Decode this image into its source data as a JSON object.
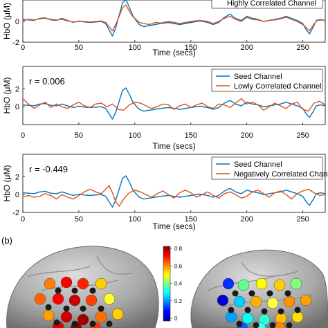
{
  "panel_b_label": "(b)",
  "colorbar_ticks": [
    "0.8",
    "0.6",
    "0.4",
    "0.2",
    "0"
  ],
  "colorbar_colors": [
    "#00008f",
    "#0000ff",
    "#0080ff",
    "#00ffff",
    "#80ff80",
    "#ffff00",
    "#ff8000",
    "#ff0000",
    "#800000"
  ],
  "colors": {
    "seed": "#0072bd",
    "other": "#d95319"
  },
  "chart_data": [
    {
      "type": "line",
      "r_label": "",
      "legend": [
        "Highly Correlated Channel"
      ],
      "xlabel": "Time (secs)",
      "ylabel": "HbO (μM)",
      "x_ticks": [
        0,
        50,
        100,
        150,
        200,
        250
      ],
      "y_ticks": [
        0,
        -2
      ],
      "xlim": [
        0,
        270
      ],
      "ylim": [
        -2,
        2.2
      ],
      "series": [
        {
          "name": "",
          "x": [
            0,
            5,
            10,
            15,
            20,
            25,
            30,
            35,
            40,
            45,
            50,
            55,
            60,
            65,
            70,
            74,
            77,
            80,
            83,
            86,
            89,
            92,
            95,
            98,
            101,
            104,
            108,
            113,
            118,
            123,
            130,
            140,
            150,
            158,
            165,
            170,
            175,
            180,
            185,
            190,
            195,
            200,
            205,
            210,
            215,
            220,
            225,
            230,
            235,
            240,
            245,
            250,
            253,
            256,
            259,
            262,
            266,
            270
          ],
          "values": [
            0.2,
            0.15,
            0.1,
            0.3,
            0.35,
            0.15,
            0.1,
            0.3,
            0.1,
            -0.1,
            0.05,
            -0.05,
            -0.1,
            -0.05,
            0.0,
            -0.2,
            -0.8,
            -1.4,
            -0.6,
            0.6,
            1.8,
            2.1,
            1.4,
            0.6,
            0.1,
            -0.3,
            -0.5,
            -0.4,
            -0.3,
            -0.2,
            -0.1,
            -0.3,
            -0.1,
            0.05,
            -0.1,
            -0.3,
            -0.1,
            0.4,
            0.7,
            0.3,
            0.1,
            0.5,
            0.3,
            0.2,
            0.0,
            0.1,
            0.2,
            0.3,
            0.5,
            0.3,
            0.1,
            -0.2,
            -0.8,
            -1.2,
            -0.6,
            0.1,
            0.2,
            0.1
          ]
        },
        {
          "name": "",
          "x": [
            0,
            5,
            10,
            15,
            20,
            25,
            30,
            35,
            40,
            45,
            50,
            55,
            60,
            65,
            70,
            74,
            77,
            80,
            83,
            86,
            89,
            92,
            95,
            98,
            101,
            104,
            108,
            113,
            118,
            123,
            130,
            140,
            150,
            158,
            165,
            170,
            175,
            180,
            185,
            190,
            195,
            200,
            205,
            210,
            215,
            220,
            225,
            230,
            235,
            240,
            245,
            250,
            253,
            256,
            259,
            262,
            266,
            270
          ],
          "values": [
            0.1,
            0.2,
            0.15,
            0.25,
            0.3,
            0.2,
            0.15,
            0.2,
            0.05,
            -0.05,
            0.0,
            0.0,
            -0.05,
            0.0,
            0.05,
            -0.1,
            -0.5,
            -0.9,
            -0.3,
            0.5,
            1.3,
            1.6,
            1.0,
            0.5,
            0.2,
            -0.1,
            -0.2,
            -0.3,
            -0.1,
            -0.15,
            0.0,
            -0.2,
            0.0,
            0.1,
            0.0,
            -0.2,
            0.0,
            0.3,
            0.5,
            0.2,
            0.0,
            0.4,
            0.2,
            0.15,
            0.0,
            0.1,
            0.15,
            0.25,
            0.4,
            0.2,
            0.0,
            -0.3,
            -0.6,
            -0.9,
            -0.4,
            0.05,
            0.15,
            0.1
          ]
        }
      ]
    },
    {
      "type": "line",
      "r_label": "r = 0.006",
      "legend": [
        "Seed Channel",
        "Lowly Correlated Channel"
      ],
      "xlabel": "Time (secs)",
      "ylabel": "HbO (μM)",
      "x_ticks": [
        0,
        50,
        100,
        150,
        200,
        250
      ],
      "y_ticks": [
        2,
        0
      ],
      "xlim": [
        0,
        270
      ],
      "ylim": [
        -2,
        4.5
      ],
      "series": [
        {
          "name": "Seed Channel",
          "x": [
            0,
            5,
            10,
            15,
            20,
            25,
            30,
            35,
            40,
            45,
            50,
            55,
            60,
            65,
            70,
            74,
            77,
            80,
            83,
            86,
            89,
            92,
            95,
            98,
            101,
            104,
            108,
            113,
            118,
            123,
            130,
            140,
            150,
            158,
            165,
            170,
            175,
            180,
            185,
            190,
            195,
            200,
            205,
            210,
            215,
            220,
            225,
            230,
            235,
            240,
            245,
            250,
            253,
            256,
            259,
            262,
            266,
            270
          ],
          "values": [
            0.2,
            0.15,
            0.1,
            0.3,
            0.35,
            0.15,
            0.1,
            0.3,
            0.1,
            -0.1,
            0.05,
            -0.05,
            -0.1,
            -0.05,
            0.0,
            -0.2,
            -0.8,
            -1.4,
            -0.6,
            0.6,
            1.8,
            2.1,
            1.4,
            0.6,
            0.1,
            -0.3,
            -0.5,
            -0.4,
            -0.3,
            -0.2,
            -0.1,
            -0.3,
            -0.1,
            0.05,
            -0.1,
            -0.3,
            -0.1,
            0.4,
            0.7,
            0.3,
            0.1,
            0.5,
            0.3,
            0.2,
            0.0,
            0.1,
            0.2,
            0.3,
            0.5,
            0.3,
            0.1,
            -0.2,
            -0.8,
            -1.2,
            -0.6,
            0.1,
            0.2,
            0.1
          ]
        },
        {
          "name": "Lowly Correlated Channel",
          "x": [
            0,
            5,
            10,
            15,
            20,
            25,
            30,
            35,
            40,
            45,
            50,
            55,
            60,
            65,
            70,
            75,
            80,
            85,
            90,
            95,
            100,
            105,
            110,
            115,
            120,
            125,
            130,
            135,
            140,
            145,
            150,
            155,
            160,
            165,
            170,
            175,
            180,
            185,
            190,
            195,
            200,
            205,
            210,
            215,
            220,
            225,
            230,
            235,
            240,
            245,
            250,
            255,
            260,
            265,
            270
          ],
          "values": [
            0.9,
            0.3,
            -0.2,
            0.2,
            0.5,
            -0.1,
            0.3,
            0.0,
            -0.2,
            0.2,
            0.5,
            0.1,
            -0.1,
            0.3,
            0.4,
            0.0,
            0.3,
            -0.3,
            -0.4,
            0.2,
            0.5,
            0.4,
            0.1,
            -0.2,
            0.0,
            0.3,
            0.2,
            -0.3,
            0.1,
            0.3,
            -0.1,
            0.2,
            0.4,
            0.0,
            -0.2,
            0.3,
            0.2,
            -0.1,
            0.4,
            0.9,
            0.3,
            0.5,
            0.2,
            -0.4,
            0.0,
            0.4,
            0.1,
            -0.2,
            0.3,
            0.5,
            -0.3,
            -0.5,
            0.4,
            0.6,
            0.2
          ]
        }
      ]
    },
    {
      "type": "line",
      "r_label": "r = -0.449",
      "legend": [
        "Seed Channel",
        "Negatively Correlated Channel"
      ],
      "xlabel": "Time (secs)",
      "ylabel": "HbO (μM)",
      "x_ticks": [
        0,
        50,
        100,
        150,
        200,
        250
      ],
      "y_ticks": [
        2,
        0,
        -2
      ],
      "xlim": [
        0,
        270
      ],
      "ylim": [
        -2,
        4.5
      ],
      "series": [
        {
          "name": "Seed Channel",
          "x": [
            0,
            5,
            10,
            15,
            20,
            25,
            30,
            35,
            40,
            45,
            50,
            55,
            60,
            65,
            70,
            74,
            77,
            80,
            83,
            86,
            89,
            92,
            95,
            98,
            101,
            104,
            108,
            113,
            118,
            123,
            130,
            140,
            150,
            158,
            165,
            170,
            175,
            180,
            185,
            190,
            195,
            200,
            205,
            210,
            215,
            220,
            225,
            230,
            235,
            240,
            245,
            250,
            253,
            256,
            259,
            262,
            266,
            270
          ],
          "values": [
            0.2,
            0.15,
            0.1,
            0.3,
            0.35,
            0.15,
            0.1,
            0.3,
            0.1,
            -0.1,
            0.05,
            -0.05,
            -0.1,
            -0.05,
            0.0,
            -0.2,
            -0.8,
            -1.4,
            -0.6,
            0.6,
            1.8,
            2.1,
            1.4,
            0.6,
            0.1,
            -0.3,
            -0.5,
            -0.4,
            -0.3,
            -0.2,
            -0.1,
            -0.3,
            -0.1,
            0.05,
            -0.1,
            -0.3,
            -0.1,
            0.4,
            0.7,
            0.3,
            0.1,
            0.5,
            0.3,
            0.2,
            0.0,
            0.1,
            0.2,
            0.3,
            0.5,
            0.3,
            0.1,
            -0.2,
            -0.8,
            -1.2,
            -0.6,
            0.1,
            0.2,
            0.1
          ]
        },
        {
          "name": "Negatively Correlated Channel",
          "x": [
            0,
            5,
            10,
            15,
            20,
            25,
            30,
            35,
            40,
            45,
            50,
            55,
            60,
            65,
            70,
            74,
            77,
            80,
            83,
            86,
            89,
            92,
            95,
            100,
            105,
            110,
            115,
            120,
            125,
            130,
            135,
            140,
            145,
            150,
            155,
            160,
            165,
            170,
            175,
            180,
            185,
            190,
            195,
            200,
            205,
            210,
            215,
            220,
            225,
            230,
            235,
            240,
            245,
            250,
            255,
            260,
            265,
            270
          ],
          "values": [
            -0.3,
            -0.1,
            -0.3,
            -0.2,
            0.1,
            -0.1,
            -0.5,
            0.0,
            -0.3,
            -0.5,
            -0.1,
            0.3,
            0.6,
            0.3,
            0.1,
            0.6,
            1.0,
            0.2,
            -0.8,
            -1.3,
            -0.7,
            -0.2,
            0.2,
            0.5,
            0.3,
            0.0,
            -0.3,
            0.1,
            0.4,
            0.0,
            -0.4,
            0.2,
            0.5,
            0.2,
            -0.3,
            0.0,
            0.3,
            -0.1,
            -0.4,
            0.1,
            0.3,
            0.0,
            -0.4,
            -0.2,
            0.3,
            0.5,
            0.1,
            -0.3,
            0.2,
            0.4,
            0.0,
            -0.5,
            0.1,
            0.4,
            0.6,
            0.2,
            -0.1,
            0.0
          ]
        }
      ]
    }
  ]
}
